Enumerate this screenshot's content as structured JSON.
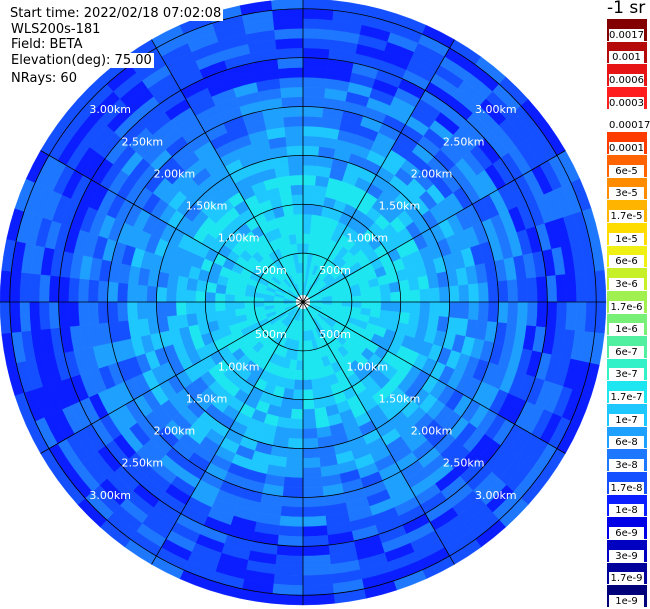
{
  "header": {
    "start_time": "Start time: 2022/02/18 07:02:08",
    "radar": "WLS200s-181",
    "field": "Field: BETA",
    "elevation": "Elevation(deg): 75.00",
    "nrays": "NRays: 60",
    "units": "-1 sr"
  },
  "chart_data": {
    "type": "heatmap",
    "projection": "polar-ppi",
    "field": "BETA",
    "units": "-1 sr",
    "elevation_deg": 75.0,
    "n_rays": 60,
    "range_rings": [
      {
        "label": "500m",
        "range_km": 0.5
      },
      {
        "label": "1.00km",
        "range_km": 1.0
      },
      {
        "label": "1.50km",
        "range_km": 1.5
      },
      {
        "label": "2.00km",
        "range_km": 2.0
      },
      {
        "label": "2.50km",
        "range_km": 2.5
      },
      {
        "label": "3.00km",
        "range_km": 3.0
      }
    ],
    "max_range_km": 3.1,
    "radial_lines_deg": [
      0,
      30,
      60,
      90,
      120,
      150,
      180,
      210,
      240,
      270,
      300,
      330
    ],
    "colorbar": [
      {
        "label": "1e-9",
        "color": "#00007a"
      },
      {
        "label": "1.7e-9",
        "color": "#00009a"
      },
      {
        "label": "3e-9",
        "color": "#0000c0"
      },
      {
        "label": "6e-9",
        "color": "#0000e6"
      },
      {
        "label": "1e-8",
        "color": "#0a1eff"
      },
      {
        "label": "1.7e-8",
        "color": "#1450ff"
      },
      {
        "label": "3e-8",
        "color": "#1e78ff"
      },
      {
        "label": "6e-8",
        "color": "#1ea0ff"
      },
      {
        "label": "1e-7",
        "color": "#1ec8ff"
      },
      {
        "label": "1.7e-7",
        "color": "#1ee6f0"
      },
      {
        "label": "3e-7",
        "color": "#32f0c8"
      },
      {
        "label": "6e-7",
        "color": "#50f0a0"
      },
      {
        "label": "1e-6",
        "color": "#78f078"
      },
      {
        "label": "1.7e-6",
        "color": "#a0f050"
      },
      {
        "label": "3e-6",
        "color": "#c8f028"
      },
      {
        "label": "6e-6",
        "color": "#f0f014"
      },
      {
        "label": "1e-5",
        "color": "#ffdc00"
      },
      {
        "label": "1.7e-5",
        "color": "#ffb400"
      },
      {
        "label": "3e-5",
        "color": "#ff8c00"
      },
      {
        "label": "6e-5",
        "color": "#ff6400"
      },
      {
        "label": "0.0001",
        "color": "#ff3c00"
      },
      {
        "label": "0.00017",
        "color": "#ffffff"
      },
      {
        "label": "0.0003",
        "color": "#ff1e1e"
      },
      {
        "label": "0.0006",
        "color": "#e61414"
      },
      {
        "label": "0.001",
        "color": "#b40a0a"
      },
      {
        "label": "0.0017",
        "color": "#820000"
      }
    ],
    "beta_profile": [
      {
        "range_km": 0.1,
        "dominant_level": "1.7e-7"
      },
      {
        "range_km": 0.5,
        "dominant_level": "1.7e-7"
      },
      {
        "range_km": 1.0,
        "dominant_level": "1e-7"
      },
      {
        "range_km": 1.5,
        "dominant_level": "6e-8"
      },
      {
        "range_km": 2.0,
        "dominant_level": "3e-8"
      },
      {
        "range_km": 2.5,
        "dominant_level": "1.7e-8"
      },
      {
        "range_km": 3.0,
        "dominant_level": "1.7e-8"
      }
    ]
  }
}
